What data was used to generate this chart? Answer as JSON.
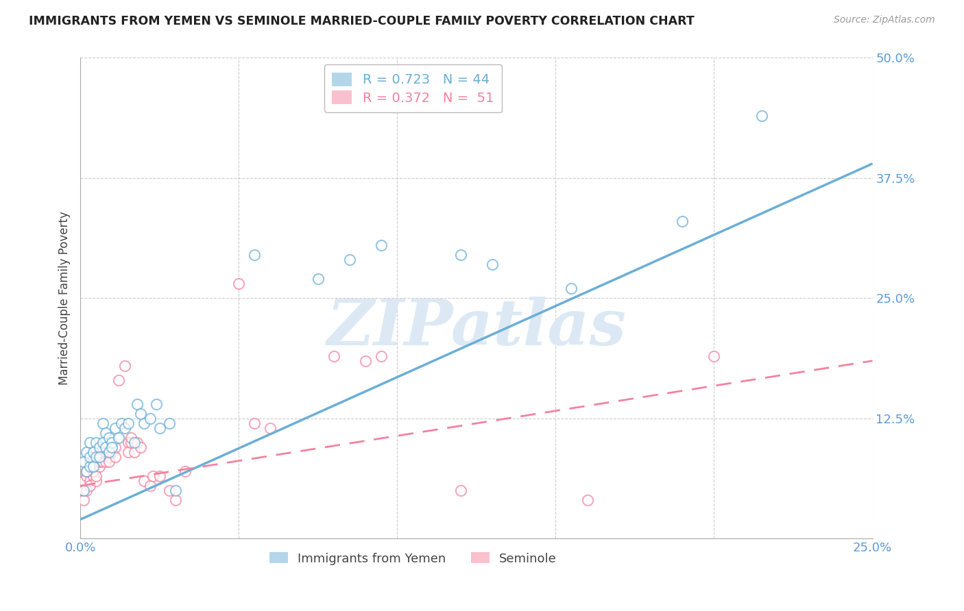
{
  "title": "IMMIGRANTS FROM YEMEN VS SEMINOLE MARRIED-COUPLE FAMILY POVERTY CORRELATION CHART",
  "source": "Source: ZipAtlas.com",
  "ylabel": "Married-Couple Family Poverty",
  "xlim": [
    0.0,
    0.25
  ],
  "ylim": [
    0.0,
    0.5
  ],
  "xticks": [
    0.0,
    0.05,
    0.1,
    0.15,
    0.2,
    0.25
  ],
  "yticks": [
    0.0,
    0.125,
    0.25,
    0.375,
    0.5
  ],
  "blue_R": 0.723,
  "blue_N": 44,
  "pink_R": 0.372,
  "pink_N": 51,
  "blue_scatter": [
    [
      0.001,
      0.05
    ],
    [
      0.001,
      0.08
    ],
    [
      0.002,
      0.07
    ],
    [
      0.002,
      0.09
    ],
    [
      0.003,
      0.1
    ],
    [
      0.003,
      0.075
    ],
    [
      0.003,
      0.085
    ],
    [
      0.004,
      0.09
    ],
    [
      0.004,
      0.075
    ],
    [
      0.005,
      0.1
    ],
    [
      0.005,
      0.085
    ],
    [
      0.006,
      0.095
    ],
    [
      0.006,
      0.085
    ],
    [
      0.007,
      0.12
    ],
    [
      0.007,
      0.1
    ],
    [
      0.008,
      0.095
    ],
    [
      0.008,
      0.11
    ],
    [
      0.009,
      0.105
    ],
    [
      0.009,
      0.09
    ],
    [
      0.01,
      0.1
    ],
    [
      0.01,
      0.095
    ],
    [
      0.011,
      0.115
    ],
    [
      0.012,
      0.105
    ],
    [
      0.013,
      0.12
    ],
    [
      0.014,
      0.115
    ],
    [
      0.015,
      0.12
    ],
    [
      0.017,
      0.1
    ],
    [
      0.018,
      0.14
    ],
    [
      0.019,
      0.13
    ],
    [
      0.02,
      0.12
    ],
    [
      0.022,
      0.125
    ],
    [
      0.024,
      0.14
    ],
    [
      0.025,
      0.115
    ],
    [
      0.028,
      0.12
    ],
    [
      0.03,
      0.05
    ],
    [
      0.055,
      0.295
    ],
    [
      0.075,
      0.27
    ],
    [
      0.085,
      0.29
    ],
    [
      0.095,
      0.305
    ],
    [
      0.12,
      0.295
    ],
    [
      0.13,
      0.285
    ],
    [
      0.155,
      0.26
    ],
    [
      0.19,
      0.33
    ],
    [
      0.215,
      0.44
    ]
  ],
  "pink_scatter": [
    [
      0.001,
      0.04
    ],
    [
      0.001,
      0.05
    ],
    [
      0.001,
      0.06
    ],
    [
      0.002,
      0.05
    ],
    [
      0.002,
      0.065
    ],
    [
      0.002,
      0.07
    ],
    [
      0.003,
      0.06
    ],
    [
      0.003,
      0.055
    ],
    [
      0.003,
      0.08
    ],
    [
      0.004,
      0.065
    ],
    [
      0.004,
      0.07
    ],
    [
      0.004,
      0.075
    ],
    [
      0.005,
      0.06
    ],
    [
      0.005,
      0.065
    ],
    [
      0.005,
      0.085
    ],
    [
      0.006,
      0.075
    ],
    [
      0.006,
      0.08
    ],
    [
      0.007,
      0.085
    ],
    [
      0.007,
      0.08
    ],
    [
      0.008,
      0.09
    ],
    [
      0.008,
      0.08
    ],
    [
      0.009,
      0.085
    ],
    [
      0.009,
      0.08
    ],
    [
      0.01,
      0.09
    ],
    [
      0.011,
      0.085
    ],
    [
      0.011,
      0.095
    ],
    [
      0.012,
      0.165
    ],
    [
      0.014,
      0.18
    ],
    [
      0.015,
      0.1
    ],
    [
      0.015,
      0.09
    ],
    [
      0.016,
      0.1
    ],
    [
      0.016,
      0.105
    ],
    [
      0.017,
      0.09
    ],
    [
      0.018,
      0.1
    ],
    [
      0.019,
      0.095
    ],
    [
      0.02,
      0.06
    ],
    [
      0.022,
      0.055
    ],
    [
      0.023,
      0.065
    ],
    [
      0.025,
      0.065
    ],
    [
      0.028,
      0.05
    ],
    [
      0.03,
      0.04
    ],
    [
      0.033,
      0.07
    ],
    [
      0.05,
      0.265
    ],
    [
      0.055,
      0.12
    ],
    [
      0.06,
      0.115
    ],
    [
      0.08,
      0.19
    ],
    [
      0.09,
      0.185
    ],
    [
      0.095,
      0.19
    ],
    [
      0.12,
      0.05
    ],
    [
      0.16,
      0.04
    ],
    [
      0.2,
      0.19
    ]
  ],
  "blue_line_x": [
    0.0,
    0.25
  ],
  "blue_line_y": [
    0.02,
    0.39
  ],
  "pink_line_x": [
    0.0,
    0.25
  ],
  "pink_line_y": [
    0.055,
    0.185
  ],
  "bg_color": "#ffffff",
  "blue_color": "#6baed6",
  "pink_color": "#f4829e",
  "grid_color": "#cccccc",
  "tick_color": "#5b9bd5",
  "watermark_color": "#dce9f5",
  "watermark": "ZIPatlas"
}
